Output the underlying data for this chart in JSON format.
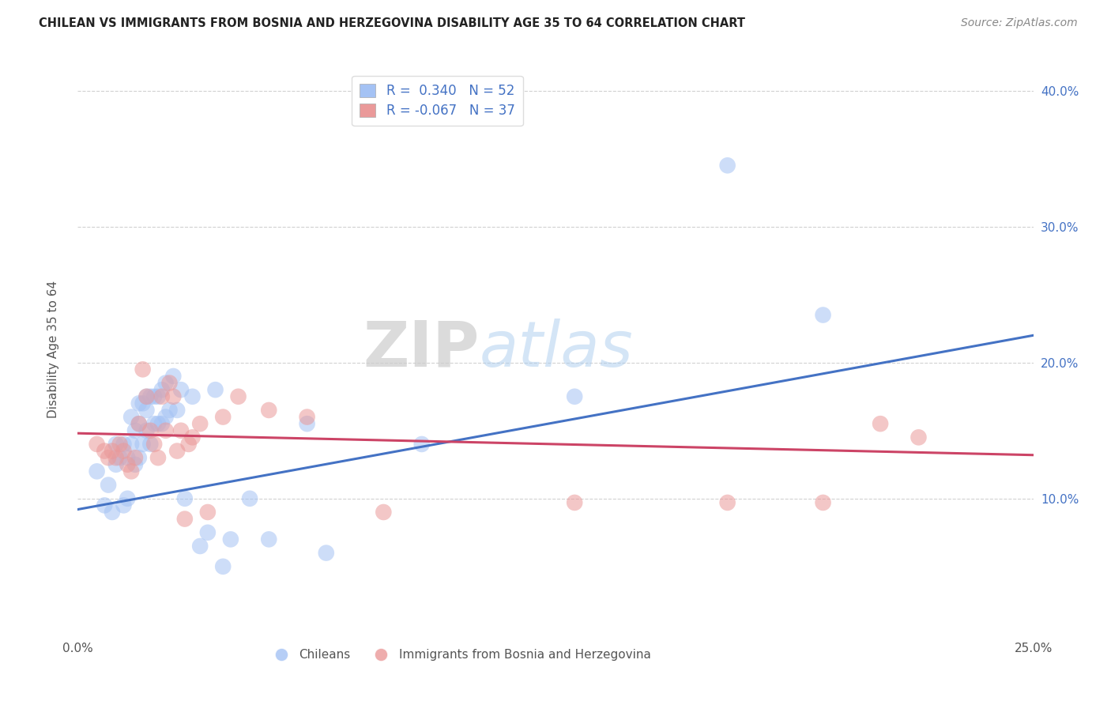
{
  "title": "CHILEAN VS IMMIGRANTS FROM BOSNIA AND HERZEGOVINA DISABILITY AGE 35 TO 64 CORRELATION CHART",
  "source": "Source: ZipAtlas.com",
  "ylabel": "Disability Age 35 to 64",
  "xlim": [
    0.0,
    0.25
  ],
  "ylim": [
    0.0,
    0.42
  ],
  "xticks": [
    0.0,
    0.05,
    0.1,
    0.15,
    0.2,
    0.25
  ],
  "xtick_labels": [
    "0.0%",
    "",
    "",
    "",
    "",
    "25.0%"
  ],
  "yticks_right": [
    0.1,
    0.2,
    0.3,
    0.4
  ],
  "ytick_labels_right": [
    "10.0%",
    "20.0%",
    "30.0%",
    "40.0%"
  ],
  "watermark_zip": "ZIP",
  "watermark_atlas": "atlas",
  "blue_color": "#a4c2f4",
  "pink_color": "#ea9999",
  "blue_edge": "#6d9eeb",
  "pink_edge": "#e06c7e",
  "line_blue": "#4472c4",
  "line_pink": "#cc4466",
  "chileans_x": [
    0.005,
    0.007,
    0.008,
    0.009,
    0.01,
    0.01,
    0.011,
    0.012,
    0.012,
    0.013,
    0.013,
    0.014,
    0.014,
    0.015,
    0.015,
    0.016,
    0.016,
    0.016,
    0.017,
    0.017,
    0.018,
    0.018,
    0.018,
    0.019,
    0.019,
    0.02,
    0.02,
    0.021,
    0.021,
    0.022,
    0.022,
    0.023,
    0.023,
    0.024,
    0.025,
    0.026,
    0.027,
    0.028,
    0.03,
    0.032,
    0.034,
    0.036,
    0.038,
    0.04,
    0.045,
    0.05,
    0.06,
    0.065,
    0.09,
    0.13,
    0.17,
    0.195
  ],
  "chileans_y": [
    0.12,
    0.095,
    0.11,
    0.09,
    0.125,
    0.14,
    0.13,
    0.095,
    0.14,
    0.1,
    0.13,
    0.14,
    0.16,
    0.125,
    0.15,
    0.13,
    0.155,
    0.17,
    0.14,
    0.17,
    0.15,
    0.165,
    0.175,
    0.14,
    0.175,
    0.155,
    0.175,
    0.155,
    0.175,
    0.155,
    0.18,
    0.16,
    0.185,
    0.165,
    0.19,
    0.165,
    0.18,
    0.1,
    0.175,
    0.065,
    0.075,
    0.18,
    0.05,
    0.07,
    0.1,
    0.07,
    0.155,
    0.06,
    0.14,
    0.175,
    0.345,
    0.235
  ],
  "immigrants_x": [
    0.005,
    0.007,
    0.008,
    0.009,
    0.01,
    0.011,
    0.012,
    0.013,
    0.014,
    0.015,
    0.016,
    0.017,
    0.018,
    0.019,
    0.02,
    0.021,
    0.022,
    0.023,
    0.024,
    0.025,
    0.026,
    0.027,
    0.028,
    0.029,
    0.03,
    0.032,
    0.034,
    0.038,
    0.042,
    0.05,
    0.06,
    0.08,
    0.13,
    0.17,
    0.195,
    0.21,
    0.22
  ],
  "immigrants_y": [
    0.14,
    0.135,
    0.13,
    0.135,
    0.13,
    0.14,
    0.135,
    0.125,
    0.12,
    0.13,
    0.155,
    0.195,
    0.175,
    0.15,
    0.14,
    0.13,
    0.175,
    0.15,
    0.185,
    0.175,
    0.135,
    0.15,
    0.085,
    0.14,
    0.145,
    0.155,
    0.09,
    0.16,
    0.175,
    0.165,
    0.16,
    0.09,
    0.097,
    0.097,
    0.097,
    0.155,
    0.145
  ],
  "blue_trendline_x": [
    0.0,
    0.25
  ],
  "blue_trendline_y": [
    0.092,
    0.22
  ],
  "pink_trendline_x": [
    0.0,
    0.25
  ],
  "pink_trendline_y": [
    0.148,
    0.132
  ]
}
